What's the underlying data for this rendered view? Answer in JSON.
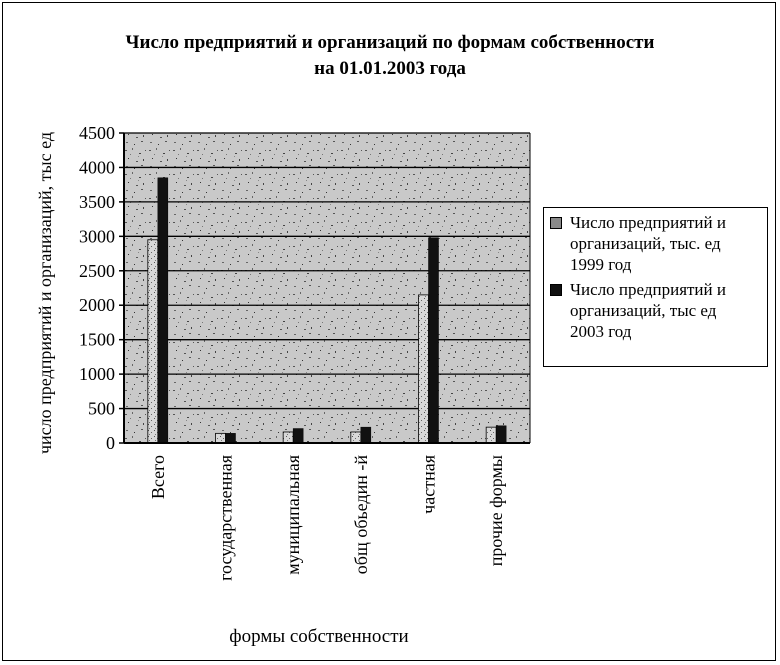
{
  "chart_data": {
    "type": "bar",
    "title_line1": "Число предприятий и организаций по формам собственности",
    "title_line2": "на 01.01.2003 года",
    "xlabel": "формы собственности",
    "ylabel": "число предприятий и организаций, тыс ед",
    "categories": [
      "Всего",
      "государственная",
      "муниципальная",
      "общ обьедин -й",
      "частная",
      "прочие формы"
    ],
    "series": [
      {
        "name": "Число предприятий и организаций, тыс. ед 1999 год",
        "name_lines": [
          "Число предприятий и",
          "организаций, тыс. ед",
          "1999 год"
        ],
        "values": [
          2950,
          140,
          160,
          160,
          2150,
          230
        ],
        "color": "#bdbdbd"
      },
      {
        "name": "Число предприятий и организаций, тыс ед 2003 год",
        "name_lines": [
          "Число предприятий и",
          "организаций, тыс  ед",
          "2003 год"
        ],
        "values": [
          3850,
          140,
          210,
          230,
          2980,
          250
        ],
        "color": "#111111"
      }
    ],
    "ylim": [
      0,
      4500
    ],
    "yticks": [
      0,
      500,
      1000,
      1500,
      2000,
      2500,
      3000,
      3500,
      4000,
      4500
    ],
    "grid": true,
    "legend_position": "right"
  }
}
